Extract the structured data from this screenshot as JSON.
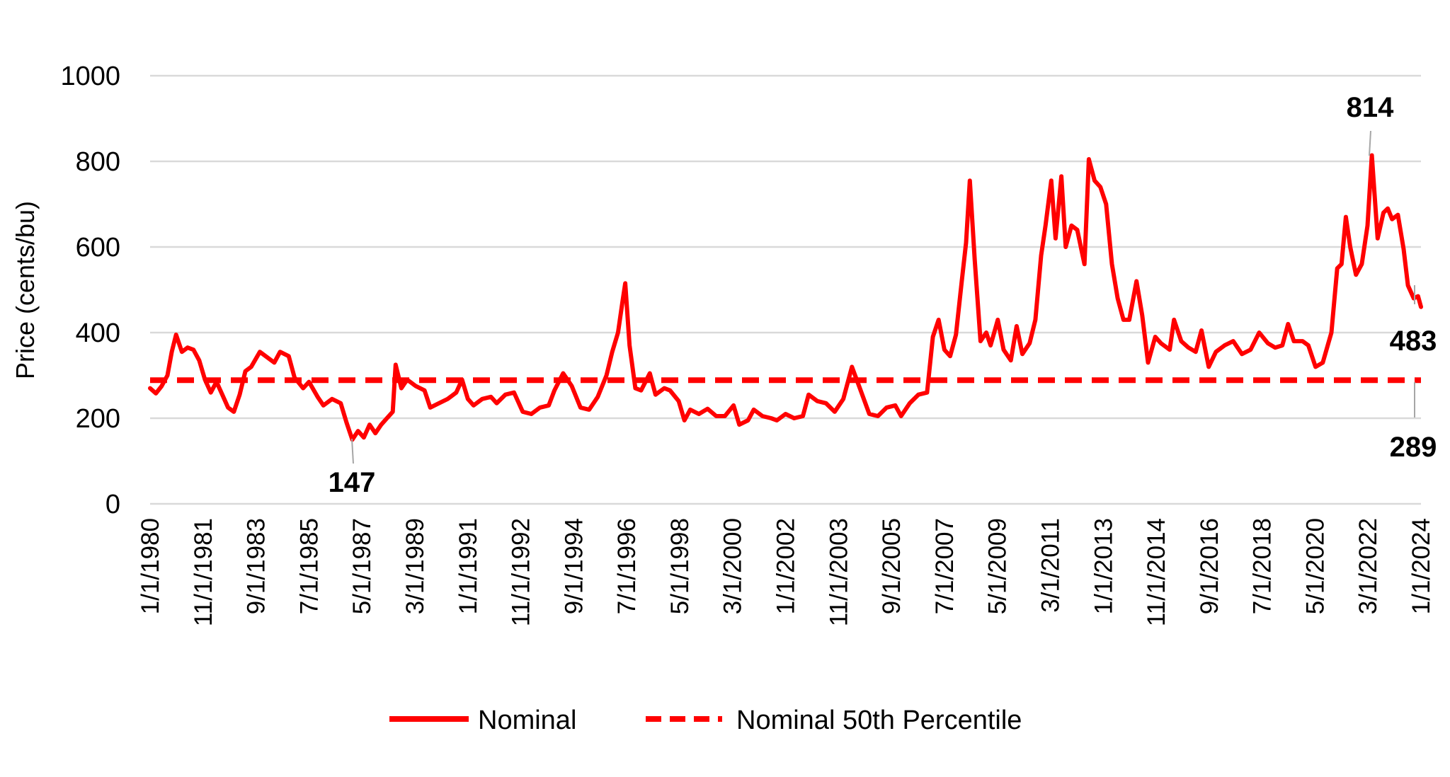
{
  "chart_data": {
    "type": "line",
    "title": "",
    "xlabel": "",
    "ylabel": "Price (cents/bu)",
    "ylim": [
      0,
      1000
    ],
    "yticks": [
      "0",
      "200",
      "400",
      "600",
      "800",
      "1000"
    ],
    "xlim": [
      1980.0,
      2024.0
    ],
    "xtick_labels": [
      "1/1/1980",
      "11/1/1981",
      "9/1/1983",
      "7/1/1985",
      "5/1/1987",
      "3/1/1989",
      "1/1/1991",
      "11/1/1992",
      "9/1/1994",
      "7/1/1996",
      "5/1/1998",
      "3/1/2000",
      "1/1/2002",
      "11/1/2003",
      "9/1/2005",
      "7/1/2007",
      "5/1/2009",
      "3/1/2011",
      "1/1/2013",
      "11/1/2014",
      "9/1/2016",
      "7/1/2018",
      "5/1/2020",
      "3/1/2022",
      "1/1/2024"
    ],
    "grid": true,
    "legend_position": "bottom",
    "series": [
      {
        "name": "Nominal",
        "color": "#ff0000",
        "style": "solid",
        "points": [
          [
            1980.0,
            270
          ],
          [
            1980.2,
            258
          ],
          [
            1980.4,
            275
          ],
          [
            1980.6,
            300
          ],
          [
            1980.75,
            355
          ],
          [
            1980.9,
            395
          ],
          [
            1981.1,
            355
          ],
          [
            1981.3,
            365
          ],
          [
            1981.5,
            360
          ],
          [
            1981.7,
            335
          ],
          [
            1981.9,
            290
          ],
          [
            1982.1,
            260
          ],
          [
            1982.3,
            285
          ],
          [
            1982.5,
            255
          ],
          [
            1982.7,
            225
          ],
          [
            1982.9,
            215
          ],
          [
            1983.1,
            255
          ],
          [
            1983.3,
            310
          ],
          [
            1983.5,
            320
          ],
          [
            1983.8,
            355
          ],
          [
            1984.0,
            345
          ],
          [
            1984.3,
            330
          ],
          [
            1984.5,
            355
          ],
          [
            1984.8,
            345
          ],
          [
            1985.0,
            295
          ],
          [
            1985.3,
            270
          ],
          [
            1985.5,
            285
          ],
          [
            1985.8,
            250
          ],
          [
            1986.0,
            230
          ],
          [
            1986.3,
            245
          ],
          [
            1986.6,
            235
          ],
          [
            1986.8,
            190
          ],
          [
            1987.0,
            150
          ],
          [
            1987.2,
            170
          ],
          [
            1987.4,
            155
          ],
          [
            1987.6,
            185
          ],
          [
            1987.8,
            165
          ],
          [
            1988.0,
            185
          ],
          [
            1988.2,
            200
          ],
          [
            1988.4,
            215
          ],
          [
            1988.5,
            325
          ],
          [
            1988.7,
            270
          ],
          [
            1988.9,
            290
          ],
          [
            1989.2,
            275
          ],
          [
            1989.5,
            265
          ],
          [
            1989.7,
            225
          ],
          [
            1990.0,
            235
          ],
          [
            1990.3,
            245
          ],
          [
            1990.6,
            260
          ],
          [
            1990.8,
            290
          ],
          [
            1991.0,
            245
          ],
          [
            1991.2,
            230
          ],
          [
            1991.5,
            245
          ],
          [
            1991.8,
            250
          ],
          [
            1992.0,
            235
          ],
          [
            1992.3,
            255
          ],
          [
            1992.6,
            260
          ],
          [
            1992.9,
            215
          ],
          [
            1993.2,
            210
          ],
          [
            1993.5,
            225
          ],
          [
            1993.8,
            230
          ],
          [
            1994.0,
            265
          ],
          [
            1994.3,
            305
          ],
          [
            1994.6,
            275
          ],
          [
            1994.9,
            225
          ],
          [
            1995.2,
            220
          ],
          [
            1995.5,
            250
          ],
          [
            1995.8,
            300
          ],
          [
            1996.0,
            355
          ],
          [
            1996.2,
            400
          ],
          [
            1996.35,
            470
          ],
          [
            1996.45,
            515
          ],
          [
            1996.6,
            370
          ],
          [
            1996.8,
            270
          ],
          [
            1997.0,
            265
          ],
          [
            1997.3,
            305
          ],
          [
            1997.5,
            255
          ],
          [
            1997.8,
            270
          ],
          [
            1998.0,
            265
          ],
          [
            1998.3,
            240
          ],
          [
            1998.5,
            195
          ],
          [
            1998.7,
            220
          ],
          [
            1999.0,
            210
          ],
          [
            1999.3,
            222
          ],
          [
            1999.6,
            205
          ],
          [
            1999.9,
            205
          ],
          [
            2000.2,
            230
          ],
          [
            2000.4,
            185
          ],
          [
            2000.7,
            195
          ],
          [
            2000.9,
            220
          ],
          [
            2001.2,
            205
          ],
          [
            2001.5,
            200
          ],
          [
            2001.7,
            195
          ],
          [
            2002.0,
            210
          ],
          [
            2002.3,
            200
          ],
          [
            2002.6,
            205
          ],
          [
            2002.8,
            255
          ],
          [
            2003.1,
            240
          ],
          [
            2003.4,
            235
          ],
          [
            2003.7,
            215
          ],
          [
            2004.0,
            245
          ],
          [
            2004.3,
            320
          ],
          [
            2004.6,
            265
          ],
          [
            2004.9,
            210
          ],
          [
            2005.2,
            205
          ],
          [
            2005.5,
            225
          ],
          [
            2005.8,
            230
          ],
          [
            2006.0,
            205
          ],
          [
            2006.3,
            235
          ],
          [
            2006.6,
            255
          ],
          [
            2006.9,
            260
          ],
          [
            2007.1,
            390
          ],
          [
            2007.3,
            430
          ],
          [
            2007.5,
            360
          ],
          [
            2007.7,
            345
          ],
          [
            2007.9,
            395
          ],
          [
            2008.1,
            520
          ],
          [
            2008.25,
            610
          ],
          [
            2008.38,
            755
          ],
          [
            2008.55,
            570
          ],
          [
            2008.75,
            380
          ],
          [
            2008.95,
            400
          ],
          [
            2009.1,
            370
          ],
          [
            2009.35,
            430
          ],
          [
            2009.55,
            360
          ],
          [
            2009.8,
            335
          ],
          [
            2010.0,
            415
          ],
          [
            2010.2,
            350
          ],
          [
            2010.45,
            375
          ],
          [
            2010.65,
            430
          ],
          [
            2010.85,
            580
          ],
          [
            2011.0,
            650
          ],
          [
            2011.2,
            755
          ],
          [
            2011.35,
            620
          ],
          [
            2011.55,
            765
          ],
          [
            2011.7,
            600
          ],
          [
            2011.9,
            650
          ],
          [
            2012.1,
            640
          ],
          [
            2012.35,
            560
          ],
          [
            2012.5,
            805
          ],
          [
            2012.7,
            755
          ],
          [
            2012.9,
            740
          ],
          [
            2013.1,
            700
          ],
          [
            2013.3,
            560
          ],
          [
            2013.5,
            480
          ],
          [
            2013.7,
            430
          ],
          [
            2013.9,
            430
          ],
          [
            2014.15,
            520
          ],
          [
            2014.35,
            440
          ],
          [
            2014.55,
            330
          ],
          [
            2014.8,
            390
          ],
          [
            2015.0,
            375
          ],
          [
            2015.3,
            360
          ],
          [
            2015.45,
            430
          ],
          [
            2015.7,
            380
          ],
          [
            2015.95,
            365
          ],
          [
            2016.2,
            355
          ],
          [
            2016.4,
            405
          ],
          [
            2016.65,
            320
          ],
          [
            2016.9,
            355
          ],
          [
            2017.2,
            370
          ],
          [
            2017.5,
            380
          ],
          [
            2017.8,
            350
          ],
          [
            2018.1,
            360
          ],
          [
            2018.4,
            400
          ],
          [
            2018.7,
            375
          ],
          [
            2018.95,
            365
          ],
          [
            2019.2,
            370
          ],
          [
            2019.4,
            420
          ],
          [
            2019.6,
            380
          ],
          [
            2019.9,
            380
          ],
          [
            2020.1,
            370
          ],
          [
            2020.35,
            320
          ],
          [
            2020.6,
            330
          ],
          [
            2020.9,
            400
          ],
          [
            2021.1,
            550
          ],
          [
            2021.25,
            560
          ],
          [
            2021.4,
            670
          ],
          [
            2021.55,
            600
          ],
          [
            2021.75,
            535
          ],
          [
            2021.95,
            560
          ],
          [
            2022.15,
            650
          ],
          [
            2022.3,
            814
          ],
          [
            2022.5,
            620
          ],
          [
            2022.7,
            680
          ],
          [
            2022.85,
            690
          ],
          [
            2023.0,
            665
          ],
          [
            2023.2,
            675
          ],
          [
            2023.4,
            595
          ],
          [
            2023.55,
            510
          ],
          [
            2023.75,
            480
          ],
          [
            2023.9,
            485
          ],
          [
            2024.0,
            460
          ]
        ]
      },
      {
        "name": "Nominal 50th Percentile",
        "color": "#ff0000",
        "style": "dashed",
        "points": [
          [
            1980.0,
            289
          ],
          [
            2024.0,
            289
          ]
        ]
      }
    ],
    "annotations": [
      {
        "text": "147",
        "x": 1987.0,
        "y": 147
      },
      {
        "text": "814",
        "x": 2022.3,
        "y": 814
      },
      {
        "text": "483",
        "x": 2023.9,
        "y": 483
      },
      {
        "text": "289",
        "x": 2023.9,
        "y": 289
      }
    ]
  }
}
